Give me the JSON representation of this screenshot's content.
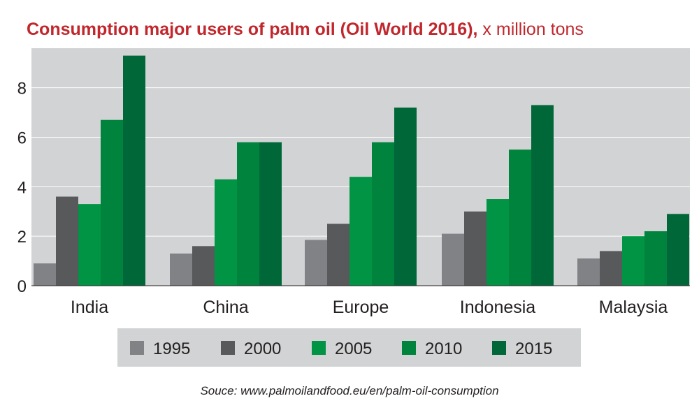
{
  "chart_data": {
    "type": "bar",
    "title": "Consumption major users of palm oil (Oil World 2016),",
    "unit_label": "x million tons",
    "categories": [
      "India",
      "China",
      "Europe",
      "Indonesia",
      "Malaysia"
    ],
    "series": [
      {
        "name": "1995",
        "color": "#808285",
        "values": [
          0.9,
          1.3,
          1.85,
          2.1,
          1.1
        ]
      },
      {
        "name": "2000",
        "color": "#58595b",
        "values": [
          3.6,
          1.6,
          2.5,
          3.0,
          1.4
        ]
      },
      {
        "name": "2005",
        "color": "#009444",
        "values": [
          3.3,
          4.3,
          4.4,
          3.5,
          2.0
        ]
      },
      {
        "name": "2010",
        "color": "#00843d",
        "values": [
          6.7,
          5.8,
          5.8,
          5.5,
          2.2
        ]
      },
      {
        "name": "2015",
        "color": "#006838",
        "values": [
          9.3,
          5.8,
          7.2,
          7.3,
          2.9
        ]
      }
    ],
    "ylim": [
      0,
      9.6
    ],
    "yticks": [
      0,
      2,
      4,
      6,
      8
    ],
    "grid": true,
    "legend_position": "bottom",
    "xlabel": "",
    "ylabel": ""
  },
  "source": "Souce: www.palmoilandfood.eu/en/palm-oil-consumption",
  "colors": {
    "title": "#c1272d",
    "plot_bg": "#d1d3d4",
    "legend_bg": "#d1d3d4"
  }
}
